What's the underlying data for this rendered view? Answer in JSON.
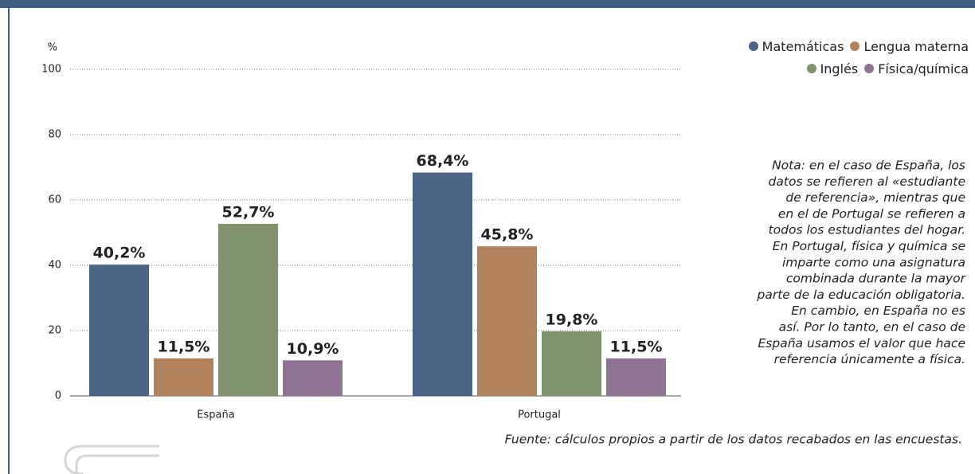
{
  "chart_data": {
    "type": "bar",
    "y_unit": "%",
    "categories": [
      "España",
      "Portugal"
    ],
    "series": [
      {
        "name": "Matemáticas",
        "color": "#4d6584",
        "values": [
          40.2,
          68.4
        ],
        "value_labels": [
          "40,2%",
          "68,4%"
        ]
      },
      {
        "name": "Lengua materna",
        "color": "#b0825e",
        "values": [
          11.5,
          45.8
        ],
        "value_labels": [
          "11,5%",
          "45,8%"
        ]
      },
      {
        "name": "Inglés",
        "color": "#80936e",
        "values": [
          52.7,
          19.8
        ],
        "value_labels": [
          "52,7%",
          "19,8%"
        ]
      },
      {
        "name": "Física/química",
        "color": "#8e7394",
        "values": [
          10.9,
          11.5
        ],
        "value_labels": [
          "10,9%",
          "11,5%"
        ]
      }
    ],
    "ylim": [
      0,
      100
    ],
    "yticks": [
      0,
      20,
      40,
      60,
      80,
      100
    ],
    "grid": true,
    "legend": "top-right",
    "note": [
      "Nota: en el caso de España, los",
      "datos se refieren al «estudiante",
      "de referencia», mientras que",
      "en el de Portugal se refieren a",
      "todos los estudiantes del hogar.",
      "En Portugal, física y química se",
      "imparte como una asignatura",
      "combinada durante la mayor",
      "parte de la educación obligatoria.",
      "En cambio, en España no es",
      "así. Por lo tanto, en el caso de",
      "España usamos el valor que hace",
      "referencia únicamente a física."
    ],
    "source": "Fuente: cálculos propios a partir de los datos recabados en las encuestas."
  }
}
